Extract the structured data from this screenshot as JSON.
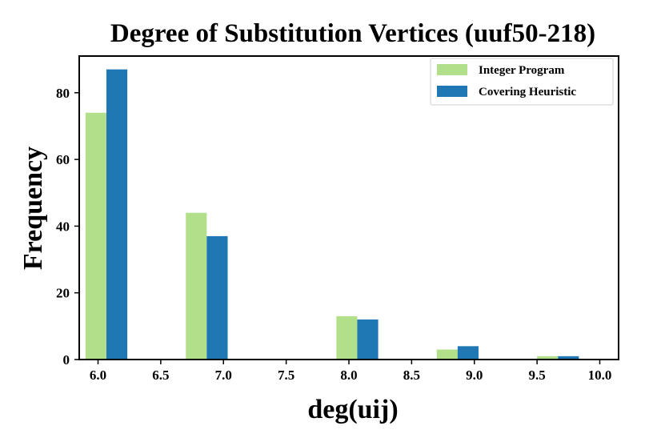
{
  "chart_data": {
    "type": "bar",
    "title": "Degree of Substitution Vertices (uuf50-218)",
    "xlabel": "deg(uij)",
    "ylabel": "Frequency",
    "xlim": [
      5.85,
      10.15
    ],
    "ylim": [
      0,
      91
    ],
    "xticks": [
      6.0,
      6.5,
      7.0,
      7.5,
      8.0,
      8.5,
      9.0,
      9.5,
      10.0
    ],
    "xtick_labels": [
      "6.0",
      "6.5",
      "7.0",
      "7.5",
      "8.0",
      "8.5",
      "9.0",
      "9.5",
      "10.0"
    ],
    "yticks": [
      0,
      20,
      40,
      60,
      80
    ],
    "ytick_labels": [
      "0",
      "20",
      "40",
      "60",
      "80"
    ],
    "bar_width": 0.1667,
    "grid": false,
    "legend_position": "top-right",
    "series": [
      {
        "name": "Integer Program",
        "color": "#b2df8a",
        "bars": [
          {
            "x_start": 5.9,
            "value": 74
          },
          {
            "x_start": 6.7,
            "value": 44
          },
          {
            "x_start": 7.9,
            "value": 13
          },
          {
            "x_start": 8.7,
            "value": 3
          },
          {
            "x_start": 9.5,
            "value": 1
          }
        ]
      },
      {
        "name": "Covering Heuristic",
        "color": "#1f78b4",
        "bars": [
          {
            "x_start": 6.0667,
            "value": 87
          },
          {
            "x_start": 6.8667,
            "value": 37
          },
          {
            "x_start": 8.0667,
            "value": 12
          },
          {
            "x_start": 8.8667,
            "value": 4
          },
          {
            "x_start": 9.6667,
            "value": 1
          }
        ]
      }
    ]
  }
}
